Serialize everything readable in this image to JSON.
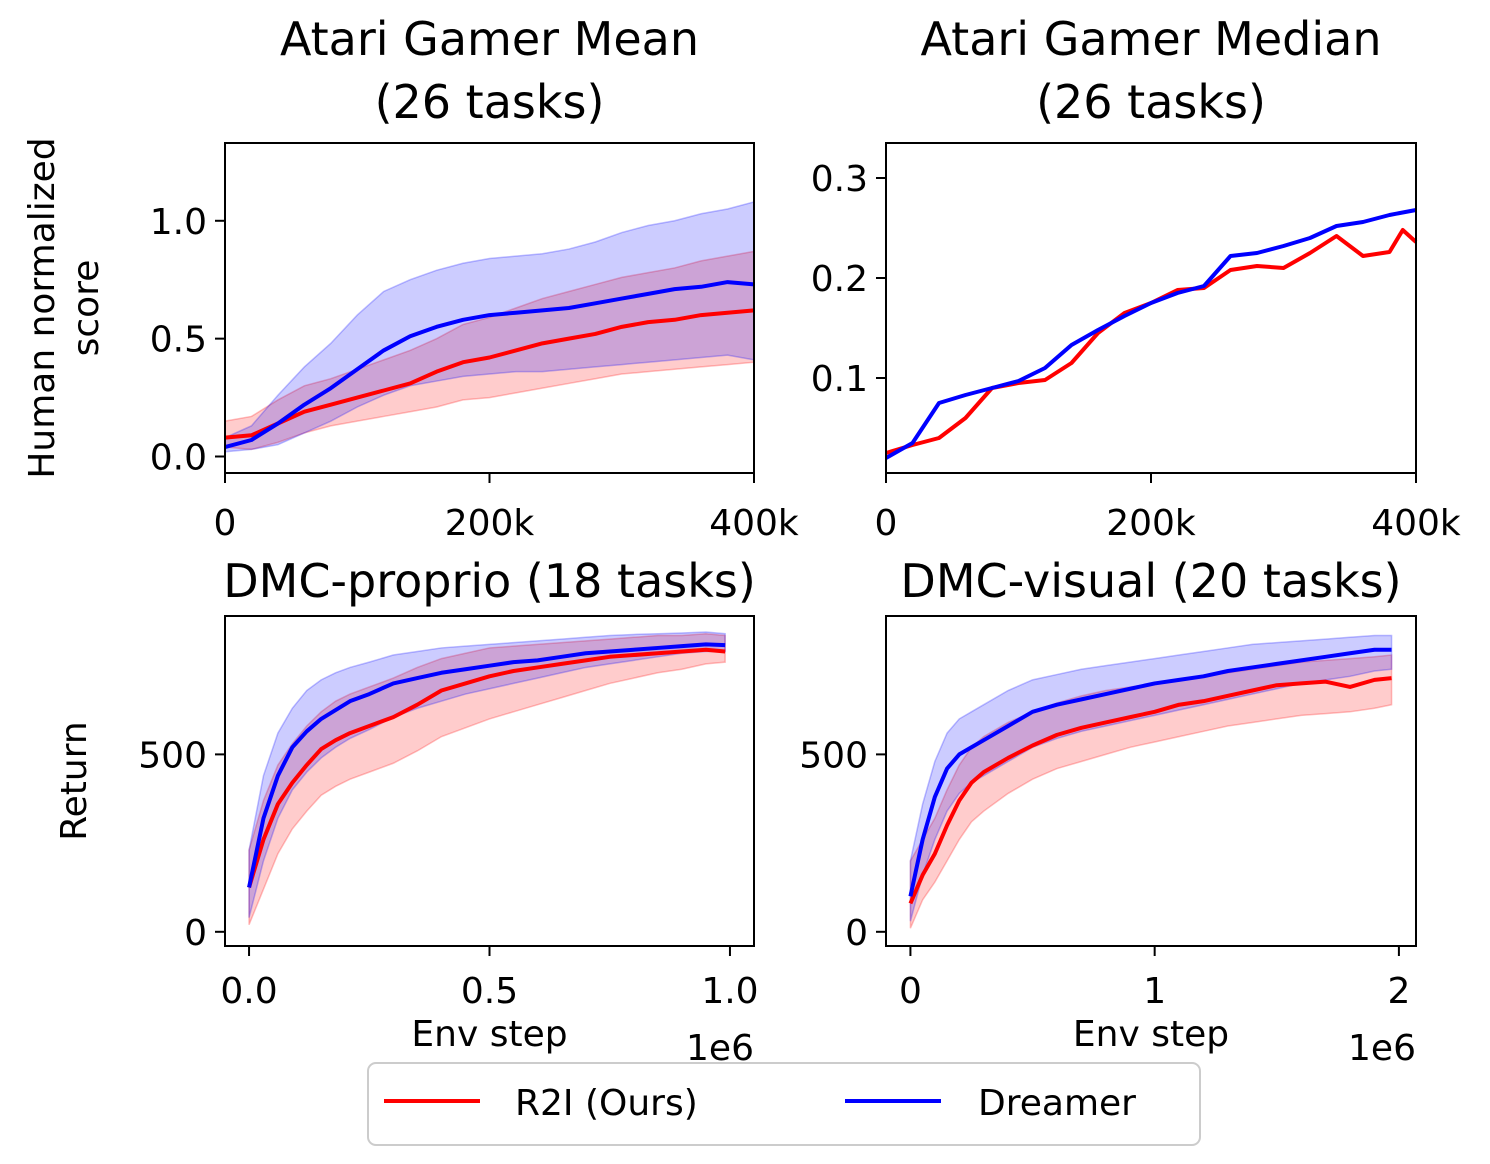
{
  "colors": {
    "r2i": "#ff0000",
    "dreamer": "#0000ff"
  },
  "legend": {
    "placement": "bottom-center",
    "items": [
      {
        "label": "R2I (Ours)",
        "color": "#ff0000"
      },
      {
        "label": "Dreamer",
        "color": "#0000ff"
      }
    ]
  },
  "chart_data": [
    {
      "type": "line",
      "title_lines": [
        "Atari Gamer Mean",
        "(26 tasks)"
      ],
      "ylabel_lines": [
        "Human normalized",
        "score"
      ],
      "xlabel": "",
      "xlim": [
        0,
        400000
      ],
      "ylim": [
        -0.07,
        1.33
      ],
      "xticks": [
        {
          "v": 0,
          "label": "0"
        },
        {
          "v": 200000,
          "label": "200k"
        },
        {
          "v": 400000,
          "label": "400k"
        }
      ],
      "yticks": [
        {
          "v": 0,
          "label": "0.0"
        },
        {
          "v": 0.5,
          "label": "0.5"
        },
        {
          "v": 1.0,
          "label": "1.0"
        }
      ],
      "x_offset_label": "",
      "series": [
        {
          "name": "R2I (Ours)",
          "color": "#ff0000",
          "x": [
            0,
            20000,
            40000,
            60000,
            80000,
            100000,
            120000,
            140000,
            160000,
            180000,
            200000,
            220000,
            240000,
            260000,
            280000,
            300000,
            320000,
            340000,
            360000,
            380000,
            400000
          ],
          "y": [
            0.08,
            0.09,
            0.14,
            0.19,
            0.22,
            0.25,
            0.28,
            0.31,
            0.36,
            0.4,
            0.42,
            0.45,
            0.48,
            0.5,
            0.52,
            0.55,
            0.57,
            0.58,
            0.6,
            0.61,
            0.62
          ],
          "lo": [
            0.04,
            0.03,
            0.06,
            0.1,
            0.13,
            0.15,
            0.17,
            0.19,
            0.21,
            0.24,
            0.25,
            0.27,
            0.29,
            0.31,
            0.33,
            0.35,
            0.36,
            0.37,
            0.38,
            0.39,
            0.4
          ],
          "hi": [
            0.15,
            0.17,
            0.24,
            0.3,
            0.33,
            0.37,
            0.41,
            0.45,
            0.5,
            0.56,
            0.59,
            0.63,
            0.67,
            0.7,
            0.73,
            0.76,
            0.78,
            0.8,
            0.83,
            0.85,
            0.87
          ]
        },
        {
          "name": "Dreamer",
          "color": "#0000ff",
          "x": [
            0,
            20000,
            40000,
            60000,
            80000,
            100000,
            120000,
            140000,
            160000,
            180000,
            200000,
            220000,
            240000,
            260000,
            280000,
            300000,
            320000,
            340000,
            360000,
            380000,
            400000
          ],
          "y": [
            0.04,
            0.07,
            0.14,
            0.22,
            0.29,
            0.37,
            0.45,
            0.51,
            0.55,
            0.58,
            0.6,
            0.61,
            0.62,
            0.63,
            0.65,
            0.67,
            0.69,
            0.71,
            0.72,
            0.74,
            0.73
          ],
          "lo": [
            0.02,
            0.03,
            0.05,
            0.1,
            0.15,
            0.21,
            0.26,
            0.3,
            0.32,
            0.34,
            0.35,
            0.36,
            0.36,
            0.37,
            0.38,
            0.39,
            0.4,
            0.41,
            0.42,
            0.43,
            0.41
          ],
          "hi": [
            0.08,
            0.13,
            0.26,
            0.38,
            0.48,
            0.6,
            0.7,
            0.75,
            0.79,
            0.82,
            0.84,
            0.85,
            0.86,
            0.88,
            0.91,
            0.95,
            0.98,
            1.0,
            1.03,
            1.05,
            1.08
          ]
        }
      ]
    },
    {
      "type": "line",
      "title_lines": [
        "Atari Gamer Median",
        "(26 tasks)"
      ],
      "ylabel_lines": [],
      "xlabel": "",
      "xlim": [
        0,
        400000
      ],
      "ylim": [
        0.005,
        0.335
      ],
      "xticks": [
        {
          "v": 0,
          "label": "0"
        },
        {
          "v": 200000,
          "label": "200k"
        },
        {
          "v": 400000,
          "label": "400k"
        }
      ],
      "yticks": [
        {
          "v": 0.1,
          "label": "0.1"
        },
        {
          "v": 0.2,
          "label": "0.2"
        },
        {
          "v": 0.3,
          "label": "0.3"
        }
      ],
      "x_offset_label": "",
      "series": [
        {
          "name": "R2I (Ours)",
          "color": "#ff0000",
          "x": [
            0,
            20000,
            40000,
            60000,
            80000,
            100000,
            120000,
            140000,
            160000,
            180000,
            200000,
            220000,
            240000,
            260000,
            280000,
            300000,
            320000,
            340000,
            360000,
            380000,
            390000,
            400000
          ],
          "y": [
            0.025,
            0.033,
            0.04,
            0.06,
            0.09,
            0.095,
            0.098,
            0.115,
            0.145,
            0.165,
            0.175,
            0.188,
            0.19,
            0.208,
            0.212,
            0.21,
            0.225,
            0.242,
            0.222,
            0.226,
            0.248,
            0.236
          ]
        },
        {
          "name": "Dreamer",
          "color": "#0000ff",
          "x": [
            0,
            20000,
            40000,
            60000,
            80000,
            100000,
            120000,
            140000,
            160000,
            180000,
            200000,
            220000,
            240000,
            260000,
            280000,
            300000,
            320000,
            340000,
            360000,
            380000,
            400000
          ],
          "y": [
            0.02,
            0.035,
            0.075,
            0.083,
            0.09,
            0.097,
            0.11,
            0.133,
            0.148,
            0.162,
            0.175,
            0.185,
            0.192,
            0.222,
            0.225,
            0.232,
            0.24,
            0.252,
            0.256,
            0.263,
            0.268
          ]
        }
      ]
    },
    {
      "type": "line",
      "title_lines": [
        "DMC-proprio (18 tasks)"
      ],
      "ylabel_lines": [
        "Return"
      ],
      "xlabel": "Env step",
      "xlim": [
        -0.05,
        1.05
      ],
      "ylim": [
        -40,
        890
      ],
      "xticks": [
        {
          "v": 0.0,
          "label": "0.0"
        },
        {
          "v": 0.5,
          "label": "0.5"
        },
        {
          "v": 1.0,
          "label": "1.0"
        }
      ],
      "yticks": [
        {
          "v": 0,
          "label": "0"
        },
        {
          "v": 500,
          "label": "500"
        }
      ],
      "x_offset_label": "1e6",
      "series": [
        {
          "name": "R2I (Ours)",
          "color": "#ff0000",
          "x": [
            0.0,
            0.03,
            0.06,
            0.09,
            0.12,
            0.15,
            0.18,
            0.21,
            0.25,
            0.3,
            0.35,
            0.4,
            0.45,
            0.5,
            0.55,
            0.6,
            0.65,
            0.7,
            0.75,
            0.8,
            0.85,
            0.9,
            0.95,
            0.99
          ],
          "y": [
            125,
            260,
            360,
            420,
            470,
            515,
            540,
            560,
            580,
            605,
            640,
            680,
            700,
            720,
            735,
            745,
            755,
            765,
            775,
            780,
            785,
            790,
            795,
            790
          ],
          "lo": [
            20,
            120,
            220,
            290,
            340,
            385,
            410,
            430,
            450,
            475,
            510,
            550,
            575,
            600,
            620,
            640,
            660,
            680,
            700,
            715,
            730,
            740,
            755,
            760
          ],
          "hi": [
            230,
            370,
            470,
            530,
            580,
            620,
            650,
            670,
            690,
            715,
            745,
            770,
            785,
            800,
            805,
            810,
            815,
            820,
            825,
            830,
            835,
            835,
            840,
            835
          ]
        },
        {
          "name": "Dreamer",
          "color": "#0000ff",
          "x": [
            0.0,
            0.03,
            0.06,
            0.09,
            0.12,
            0.15,
            0.18,
            0.21,
            0.25,
            0.3,
            0.35,
            0.4,
            0.45,
            0.5,
            0.55,
            0.6,
            0.65,
            0.7,
            0.75,
            0.8,
            0.85,
            0.9,
            0.95,
            0.99
          ],
          "y": [
            125,
            320,
            440,
            520,
            565,
            600,
            625,
            650,
            670,
            700,
            715,
            730,
            740,
            750,
            760,
            765,
            775,
            785,
            790,
            795,
            800,
            805,
            810,
            808
          ],
          "lo": [
            40,
            200,
            320,
            400,
            450,
            490,
            520,
            545,
            570,
            605,
            630,
            650,
            670,
            685,
            700,
            715,
            730,
            745,
            755,
            765,
            775,
            785,
            790,
            790
          ],
          "hi": [
            230,
            440,
            560,
            630,
            680,
            710,
            730,
            745,
            760,
            780,
            790,
            800,
            805,
            810,
            815,
            820,
            825,
            830,
            835,
            838,
            840,
            842,
            845,
            840
          ]
        }
      ]
    },
    {
      "type": "line",
      "title_lines": [
        "DMC-visual (20 tasks)"
      ],
      "ylabel_lines": [],
      "xlabel": "Env step",
      "xlim": [
        -0.1,
        2.07
      ],
      "ylim": [
        -40,
        890
      ],
      "xticks": [
        {
          "v": 0,
          "label": "0"
        },
        {
          "v": 1,
          "label": "1"
        },
        {
          "v": 2,
          "label": "2"
        }
      ],
      "yticks": [
        {
          "v": 0,
          "label": "0"
        },
        {
          "v": 500,
          "label": "500"
        }
      ],
      "x_offset_label": "1e6",
      "series": [
        {
          "name": "R2I (Ours)",
          "color": "#ff0000",
          "x": [
            0.0,
            0.05,
            0.1,
            0.15,
            0.2,
            0.25,
            0.3,
            0.4,
            0.5,
            0.6,
            0.7,
            0.8,
            0.9,
            1.0,
            1.1,
            1.2,
            1.3,
            1.4,
            1.5,
            1.6,
            1.7,
            1.8,
            1.9,
            1.97
          ],
          "y": [
            80,
            160,
            220,
            300,
            370,
            420,
            450,
            490,
            525,
            555,
            575,
            590,
            605,
            620,
            640,
            650,
            665,
            680,
            695,
            700,
            705,
            690,
            710,
            715
          ],
          "lo": [
            10,
            90,
            140,
            200,
            260,
            310,
            340,
            390,
            430,
            460,
            480,
            500,
            520,
            535,
            550,
            565,
            580,
            590,
            600,
            610,
            615,
            620,
            630,
            640
          ],
          "hi": [
            200,
            260,
            320,
            400,
            470,
            520,
            550,
            590,
            620,
            645,
            665,
            680,
            690,
            700,
            710,
            720,
            730,
            740,
            750,
            760,
            765,
            770,
            775,
            780
          ]
        },
        {
          "name": "Dreamer",
          "color": "#0000ff",
          "x": [
            0.0,
            0.05,
            0.1,
            0.15,
            0.2,
            0.25,
            0.3,
            0.4,
            0.5,
            0.6,
            0.7,
            0.8,
            0.9,
            1.0,
            1.1,
            1.2,
            1.3,
            1.4,
            1.5,
            1.6,
            1.7,
            1.8,
            1.9,
            1.97
          ],
          "y": [
            100,
            260,
            380,
            460,
            500,
            520,
            540,
            580,
            620,
            640,
            655,
            670,
            685,
            700,
            710,
            720,
            735,
            745,
            755,
            765,
            775,
            785,
            795,
            795
          ],
          "lo": [
            30,
            160,
            260,
            340,
            390,
            420,
            440,
            480,
            520,
            545,
            565,
            580,
            595,
            610,
            625,
            640,
            655,
            670,
            685,
            700,
            710,
            720,
            735,
            740
          ],
          "hi": [
            200,
            360,
            480,
            560,
            600,
            620,
            640,
            680,
            710,
            725,
            740,
            750,
            760,
            770,
            780,
            790,
            800,
            810,
            815,
            820,
            825,
            830,
            835,
            835
          ]
        }
      ]
    }
  ]
}
